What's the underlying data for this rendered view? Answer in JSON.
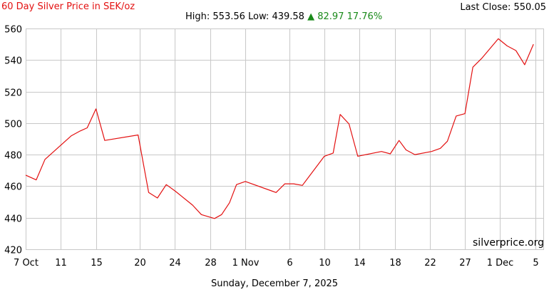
{
  "header": {
    "title": "60 Day Silver Price in SEK/oz",
    "last_close_label": "Last Close:",
    "last_close_value": "550.05",
    "high_label": "High:",
    "high_value": "553.56",
    "low_label": "Low:",
    "low_value": "439.58",
    "change_arrow": "▲",
    "change_abs": "82.97",
    "change_pct": "17.76%"
  },
  "watermark": "silverprice.org",
  "footer_date": "Sunday, December 7, 2025",
  "colors": {
    "line": "#e31010",
    "grid": "#c8c8c8",
    "title": "#e31010",
    "change": "#1a8a1a"
  },
  "chart_data": {
    "type": "line",
    "title": "60 Day Silver Price in SEK/oz",
    "xlabel": "",
    "ylabel": "",
    "grid": true,
    "ylim": [
      420,
      560
    ],
    "xlim": [
      0,
      59
    ],
    "y_ticks": [
      420,
      440,
      460,
      480,
      500,
      520,
      540,
      560
    ],
    "x_ticks": [
      {
        "day": 0,
        "label": "7 Oct"
      },
      {
        "day": 4,
        "label": "11"
      },
      {
        "day": 8,
        "label": "15"
      },
      {
        "day": 13,
        "label": "20"
      },
      {
        "day": 17,
        "label": "24"
      },
      {
        "day": 21,
        "label": "28"
      },
      {
        "day": 25,
        "label": "1 Nov"
      },
      {
        "day": 30,
        "label": "6"
      },
      {
        "day": 34,
        "label": "10"
      },
      {
        "day": 38,
        "label": "14"
      },
      {
        "day": 42,
        "label": "18"
      },
      {
        "day": 46,
        "label": "22"
      },
      {
        "day": 50,
        "label": "27"
      },
      {
        "day": 54,
        "label": "1 Dec"
      },
      {
        "day": 58,
        "label": "5"
      }
    ],
    "series": [
      {
        "name": "",
        "points": [
          [
            0.0,
            467
          ],
          [
            1.2,
            464
          ],
          [
            2.2,
            477
          ],
          [
            5.2,
            492
          ],
          [
            6.2,
            495
          ],
          [
            7.0,
            497
          ],
          [
            8.0,
            509
          ],
          [
            9.0,
            489
          ],
          [
            12.8,
            492.5
          ],
          [
            14.0,
            456
          ],
          [
            15.0,
            452.5
          ],
          [
            16.0,
            461
          ],
          [
            17.0,
            457
          ],
          [
            19.0,
            448
          ],
          [
            20.0,
            442
          ],
          [
            21.5,
            439.5
          ],
          [
            22.3,
            442
          ],
          [
            23.2,
            449.5
          ],
          [
            24.0,
            461
          ],
          [
            25.0,
            463
          ],
          [
            28.5,
            456
          ],
          [
            29.5,
            461.5
          ],
          [
            30.5,
            461.5
          ],
          [
            31.5,
            460.5
          ],
          [
            34.0,
            479
          ],
          [
            35.0,
            481
          ],
          [
            35.8,
            505.5
          ],
          [
            36.8,
            499.5
          ],
          [
            37.8,
            479
          ],
          [
            40.5,
            482
          ],
          [
            41.5,
            480.5
          ],
          [
            42.5,
            489
          ],
          [
            43.3,
            483
          ],
          [
            44.3,
            480
          ],
          [
            46.2,
            482
          ],
          [
            47.2,
            484
          ],
          [
            48.0,
            488.5
          ],
          [
            49.0,
            504.5
          ],
          [
            50.0,
            506
          ],
          [
            50.9,
            535.5
          ],
          [
            51.9,
            541
          ],
          [
            53.8,
            553.5
          ],
          [
            54.8,
            549
          ],
          [
            55.8,
            546
          ],
          [
            56.8,
            537
          ],
          [
            57.8,
            550
          ]
        ]
      }
    ]
  }
}
